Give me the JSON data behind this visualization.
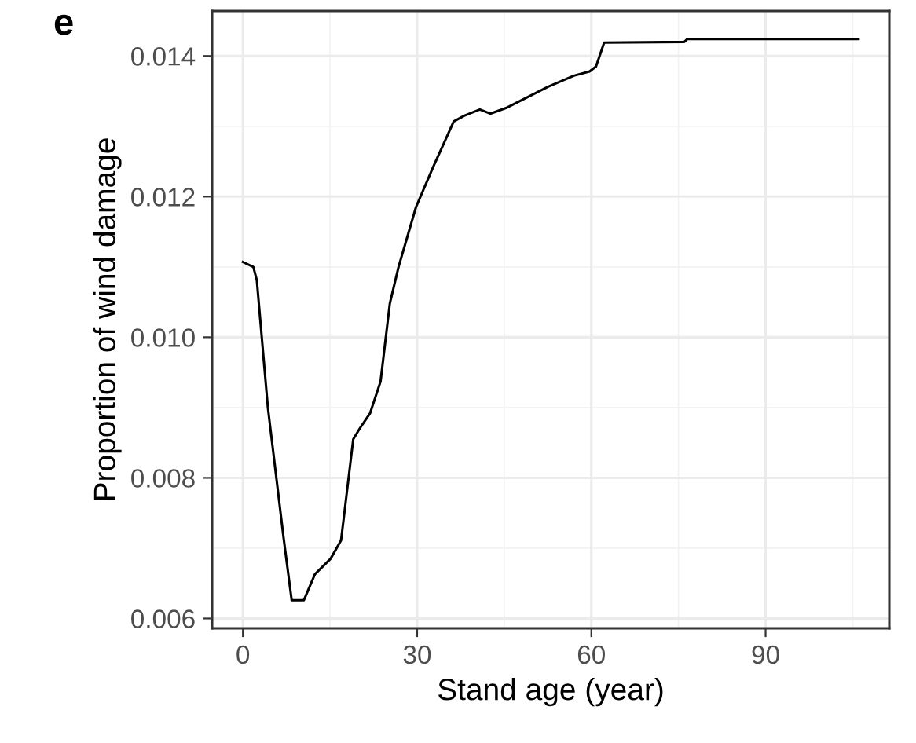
{
  "chart_data": {
    "type": "line",
    "xlabel": "Stand age (year)",
    "ylabel": "Proportion of wind damage",
    "annotations": [
      "e"
    ],
    "x": [
      0,
      1.8,
      2.4,
      4.3,
      7.0,
      8.4,
      10.5,
      12.4,
      15.1,
      16.9,
      19.0,
      20.1,
      21.9,
      23.7,
      25.3,
      26.8,
      29.8,
      32.7,
      36.3,
      38.1,
      40.8,
      42.6,
      45.3,
      48.9,
      52.5,
      57.0,
      59.7,
      60.8,
      62.2,
      76.0,
      76.5,
      106
    ],
    "series": [
      {
        "color": "#000000",
        "values": [
          0.01107,
          0.011,
          0.01081,
          0.009,
          0.00715,
          0.00626,
          0.00626,
          0.00663,
          0.00685,
          0.00711,
          0.00855,
          0.0087,
          0.00892,
          0.00937,
          0.01048,
          0.011,
          0.01185,
          0.01241,
          0.01307,
          0.01315,
          0.01324,
          0.01318,
          0.01326,
          0.01341,
          0.01356,
          0.01372,
          0.01378,
          0.01385,
          0.01419,
          0.0142,
          0.01424,
          0.01424
        ]
      }
    ],
    "xlim": [
      -5.3,
      111.3
    ],
    "ylim": [
      0.00586,
      0.01464
    ],
    "xticks": [
      0,
      30,
      60,
      90
    ],
    "yticks": [
      {
        "value": 0.006,
        "label": "0.006"
      },
      {
        "value": 0.008,
        "label": "0.008"
      },
      {
        "value": 0.01,
        "label": "0.010"
      },
      {
        "value": 0.012,
        "label": "0.012"
      },
      {
        "value": 0.014,
        "label": "0.014"
      }
    ],
    "grid": true,
    "legend": false,
    "marker": "none",
    "line_style": "solid"
  }
}
